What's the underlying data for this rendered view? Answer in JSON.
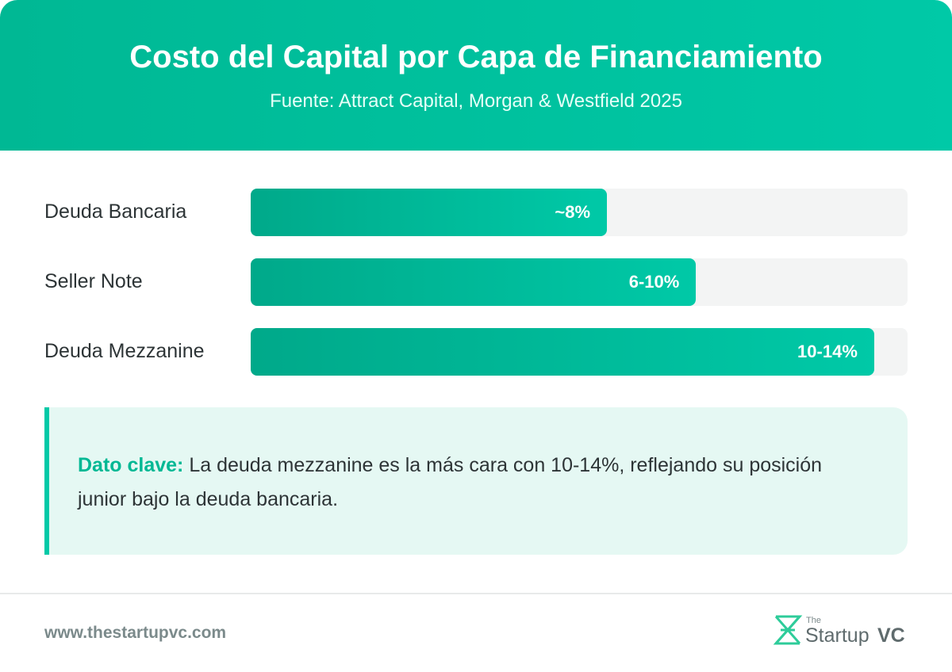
{
  "chart_data": {
    "type": "bar",
    "orientation": "horizontal",
    "title": "Costo del Capital por Capa de Financiamiento",
    "subtitle": "Fuente: Attract Capital, Morgan & Westfield 2025",
    "categories": [
      "Deuda Bancaria",
      "Seller Note",
      "Deuda Mezzanine"
    ],
    "values": [
      8,
      10,
      14
    ],
    "value_labels": [
      "~8%",
      "6-10%",
      "10-14%"
    ],
    "xlim": [
      0,
      14.75
    ],
    "color": "#00b894"
  },
  "note": {
    "label": "Dato clave:",
    "text": "La deuda mezzanine es la más cara con 10-14%, reflejando su posición junior bajo la deuda bancaria."
  },
  "footer": {
    "url": "www.thestartupvc.com",
    "logo_small": "The",
    "logo_main": "Startup",
    "logo_suffix": "VC"
  }
}
